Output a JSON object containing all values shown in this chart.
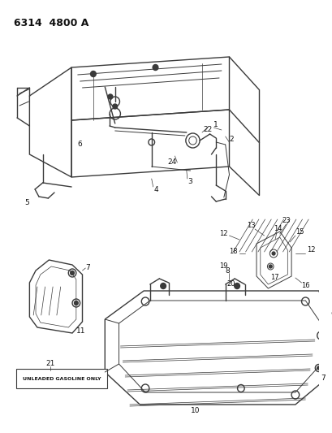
{
  "title": "6314  4800 A",
  "bg": "#f5f5f0",
  "lc": "#3a3a3a",
  "tc": "#111111",
  "figsize": [
    4.1,
    5.33
  ],
  "dpi": 100,
  "gasoline_label": "UNLEADED GASOLINE ONLY"
}
